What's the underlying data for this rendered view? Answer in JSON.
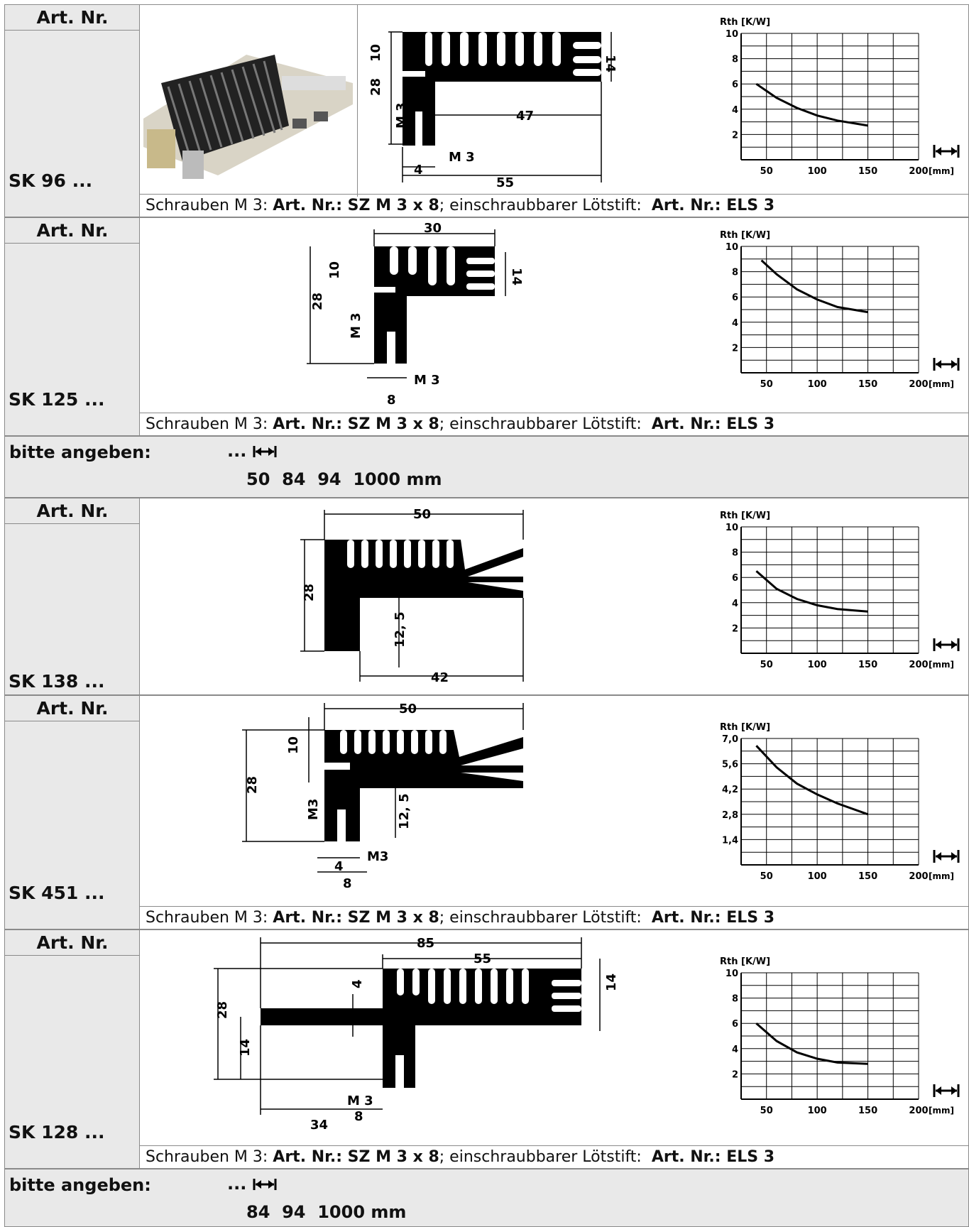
{
  "common": {
    "art_label": "Art. Nr.",
    "footer_prefix": "Schrauben M 3: ",
    "footer_art1": "Art. Nr.: SZ M 3 x 8",
    "footer_mid": "; einschraubbarer Lötstift:  ",
    "footer_art2": "Art. Nr.: ELS 3"
  },
  "sections": [
    {
      "code": "SK 96 ...",
      "dims": [
        "10",
        "28",
        "M 3",
        "14",
        "47",
        "M 3",
        "4",
        "55"
      ]
    },
    {
      "code": "SK 125 ...",
      "dims": [
        "30",
        "10",
        "28",
        "M 3",
        "14",
        "M 3",
        "8"
      ]
    },
    {
      "code": "SK 138 ...",
      "dims": [
        "50",
        "28",
        "12, 5",
        "42"
      ]
    },
    {
      "code": "SK 451 ...",
      "dims": [
        "50",
        "10",
        "28",
        "M3",
        "12, 5",
        "M3",
        "4",
        "8"
      ]
    },
    {
      "code": "SK 128 ...",
      "dims": [
        "85",
        "55",
        "4",
        "28",
        "14",
        "14",
        "M 3",
        "8",
        "34"
      ]
    }
  ],
  "order_boxes": [
    {
      "label": "bitte angeben:",
      "dots": "...",
      "sizes": "50  84  94  1000 mm"
    },
    {
      "label": "bitte angeben:",
      "dots": "...",
      "sizes": "84  94  1000 mm"
    }
  ],
  "chart_data": [
    {
      "type": "line",
      "title": "SK 96",
      "ylabel": "Rth [K/W]",
      "xlabel": "[mm]",
      "x_ticks": [
        "50",
        "100",
        "150",
        "200"
      ],
      "y_ticks": [
        "2",
        "4",
        "6",
        "8",
        "10"
      ],
      "xlim": [
        25,
        200
      ],
      "ylim": [
        0,
        10
      ],
      "series": [
        {
          "x": [
            40,
            60,
            80,
            100,
            120,
            150
          ],
          "y": [
            6.0,
            4.9,
            4.1,
            3.5,
            3.1,
            2.7
          ]
        }
      ]
    },
    {
      "type": "line",
      "title": "SK 125",
      "ylabel": "Rth [K/W]",
      "xlabel": "[mm]",
      "x_ticks": [
        "50",
        "100",
        "150",
        "200"
      ],
      "y_ticks": [
        "2",
        "4",
        "6",
        "8",
        "10"
      ],
      "xlim": [
        25,
        200
      ],
      "ylim": [
        0,
        10
      ],
      "series": [
        {
          "x": [
            45,
            60,
            80,
            100,
            120,
            150
          ],
          "y": [
            8.9,
            7.8,
            6.6,
            5.8,
            5.2,
            4.8
          ]
        }
      ]
    },
    {
      "type": "line",
      "title": "SK 138",
      "ylabel": "Rth [K/W]",
      "xlabel": "[mm]",
      "x_ticks": [
        "50",
        "100",
        "150",
        "200"
      ],
      "y_ticks": [
        "2",
        "4",
        "6",
        "8",
        "10"
      ],
      "xlim": [
        25,
        200
      ],
      "ylim": [
        0,
        10
      ],
      "series": [
        {
          "x": [
            40,
            60,
            80,
            100,
            120,
            150
          ],
          "y": [
            6.5,
            5.1,
            4.3,
            3.8,
            3.5,
            3.3
          ]
        }
      ]
    },
    {
      "type": "line",
      "title": "SK 451",
      "ylabel": "Rth [K/W]",
      "xlabel": "[mm]",
      "x_ticks": [
        "50",
        "100",
        "150",
        "200"
      ],
      "y_ticks": [
        "1,4",
        "2,8",
        "4,2",
        "5,6",
        "7,0"
      ],
      "xlim": [
        25,
        200
      ],
      "ylim": [
        0,
        7
      ],
      "series": [
        {
          "x": [
            40,
            60,
            80,
            100,
            120,
            150
          ],
          "y": [
            6.6,
            5.4,
            4.5,
            3.9,
            3.4,
            2.8
          ]
        }
      ]
    },
    {
      "type": "line",
      "title": "SK 128",
      "ylabel": "Rth [K/W]",
      "xlabel": "[mm]",
      "x_ticks": [
        "50",
        "100",
        "150",
        "200"
      ],
      "y_ticks": [
        "2",
        "4",
        "6",
        "8",
        "10"
      ],
      "xlim": [
        25,
        200
      ],
      "ylim": [
        0,
        10
      ],
      "series": [
        {
          "x": [
            40,
            60,
            80,
            100,
            120,
            150
          ],
          "y": [
            6.0,
            4.6,
            3.7,
            3.2,
            2.9,
            2.8
          ]
        }
      ]
    }
  ]
}
